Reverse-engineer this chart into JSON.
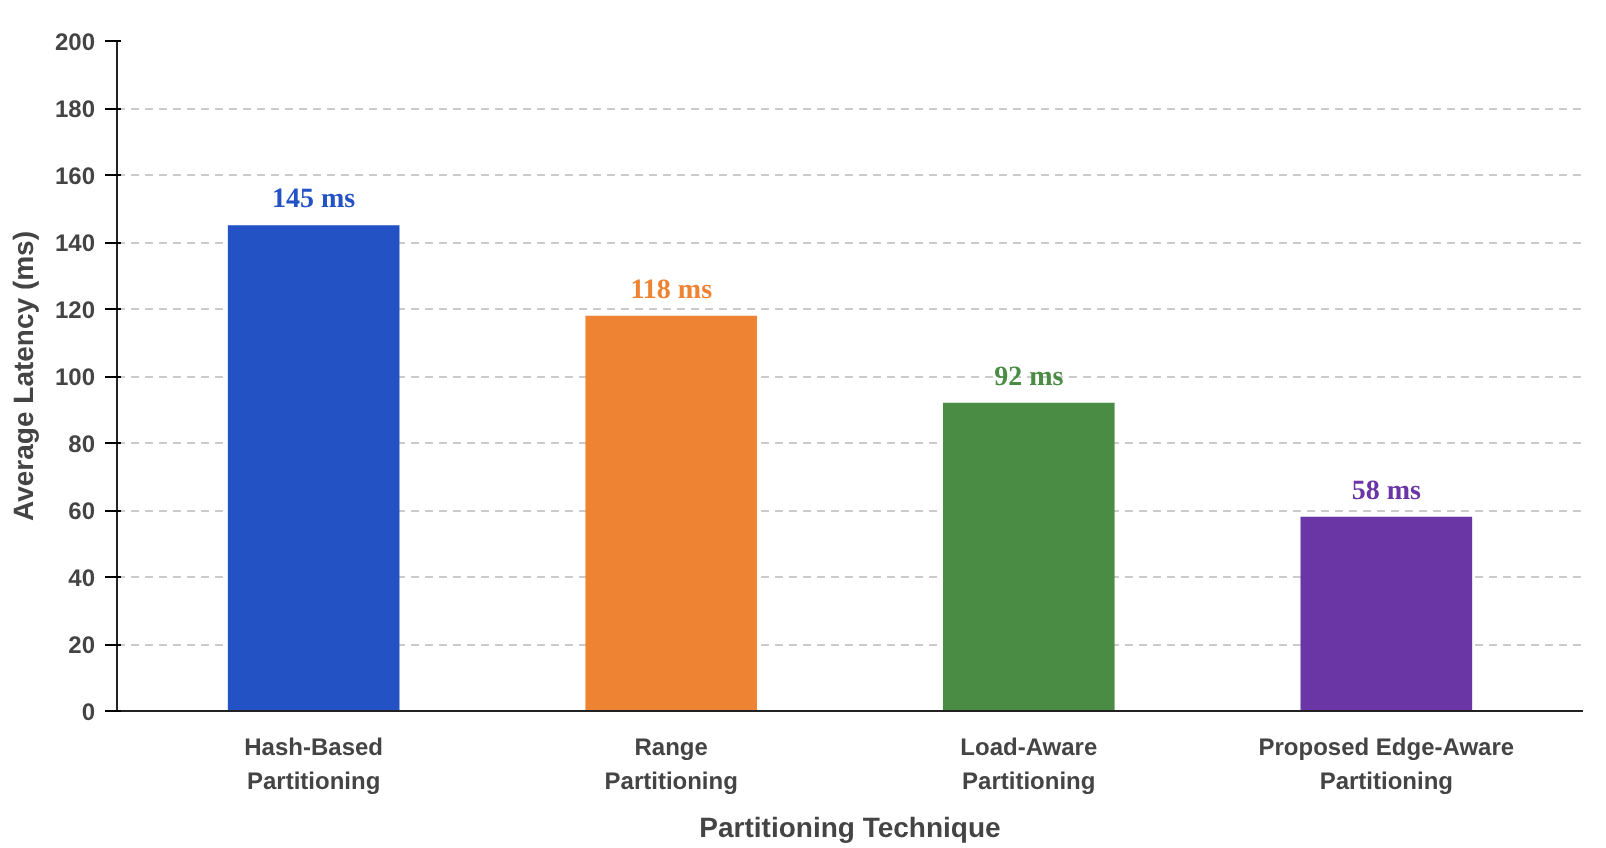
{
  "chart_data": {
    "type": "bar",
    "xlabel": "Partitioning Technique",
    "ylabel": "Average Latency (ms)",
    "categories": [
      "Hash-Based\nPartitioning",
      "Range\nPartitioning",
      "Load-Aware\nPartitioning",
      "Proposed Edge-Aware\nPartitioning"
    ],
    "values": [
      145,
      118,
      92,
      58
    ],
    "colors": [
      "#2352c4",
      "#ee8433",
      "#4a8c44",
      "#6a35a5"
    ],
    "value_labels": [
      "145 ms",
      "118 ms",
      "92 ms",
      "58 ms"
    ],
    "ylim": [
      0,
      200
    ],
    "yticks": [
      0,
      20,
      40,
      60,
      80,
      100,
      120,
      140,
      160,
      180,
      200
    ],
    "grid": "y"
  }
}
